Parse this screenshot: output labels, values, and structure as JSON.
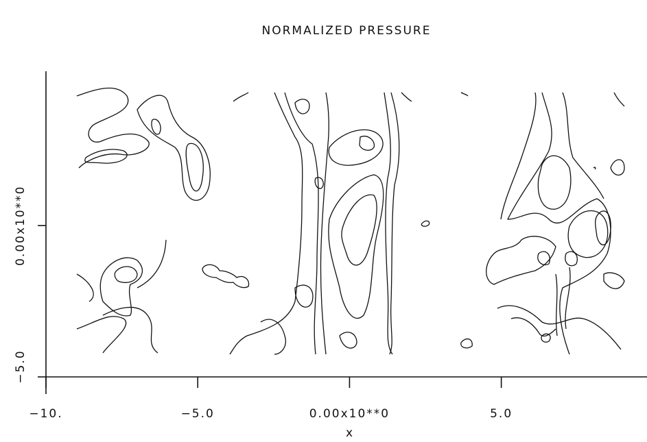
{
  "chart_data": {
    "type": "contour",
    "title": "NORMALIZED PRESSURE",
    "x_label": "x",
    "xlim": [
      -10,
      9.8
    ],
    "ylim": [
      -5,
      5.1
    ],
    "xticks": [
      {
        "value": -10,
        "label": "−10."
      },
      {
        "value": -5,
        "label": "−5.0"
      },
      {
        "value": 0,
        "label": "0.00x10**0"
      },
      {
        "value": 5,
        "label": "5.0"
      }
    ],
    "yticks": [
      {
        "value": -5,
        "label": "−5.0"
      },
      {
        "value": 0,
        "label": "0.00x10**0"
      }
    ],
    "color": "#111111"
  }
}
